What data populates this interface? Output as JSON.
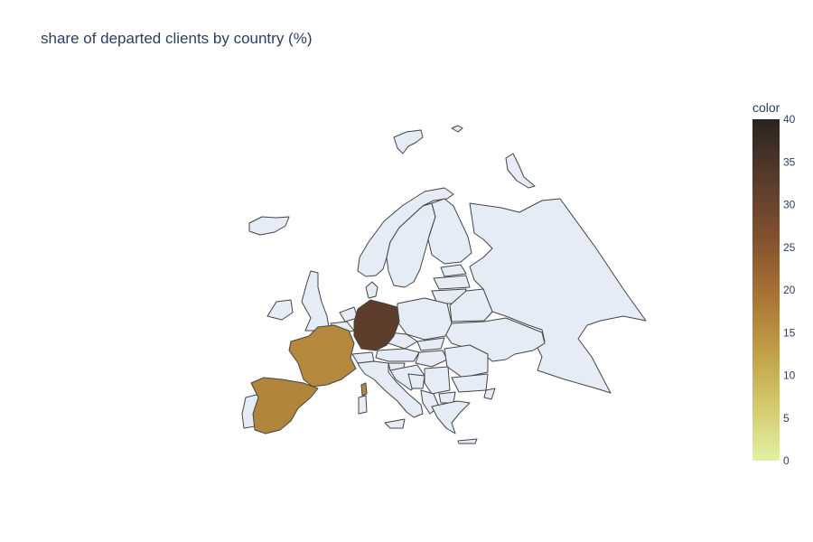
{
  "title": "share of departed clients by country (%)",
  "chart_data": {
    "type": "choropleth",
    "title": "share of departed clients by country (%)",
    "scope": "europe",
    "locations": [
      "Germany",
      "France",
      "Spain"
    ],
    "values": [
      32.4,
      16.2,
      16.7
    ],
    "no_data_color": "#e5ecf6",
    "colorbar": {
      "title": "color",
      "range": [
        0,
        40
      ],
      "ticks": [
        0,
        5,
        10,
        15,
        20,
        25,
        30,
        35,
        40
      ],
      "colorscale": [
        "#e3f0a3",
        "#d3c86b",
        "#bf9b44",
        "#a66f34",
        "#7f4f2e",
        "#573a2b",
        "#2a2320"
      ]
    }
  }
}
